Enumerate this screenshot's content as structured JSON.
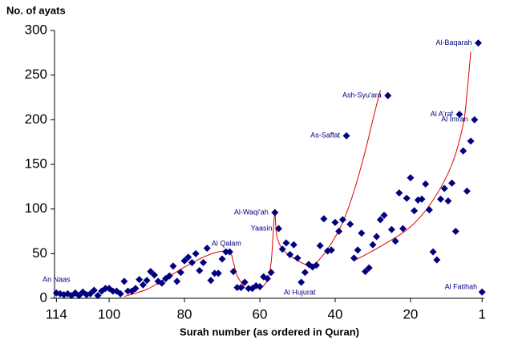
{
  "chart_data": {
    "type": "scatter",
    "y_label": "No. of ayats",
    "x_label": "Surah number  (as ordered in Quran)",
    "xlim": [
      114.5,
      0.4
    ],
    "ylim": [
      0,
      300
    ],
    "xticks": [
      114,
      100,
      80,
      60,
      40,
      20,
      1
    ],
    "yticks": [
      0,
      50,
      100,
      150,
      200,
      250,
      300
    ],
    "grid": false,
    "point_color": "#000080",
    "curve_color": "#e00000",
    "x": [
      1,
      2,
      3,
      4,
      5,
      6,
      7,
      8,
      9,
      10,
      11,
      12,
      13,
      14,
      15,
      16,
      17,
      18,
      19,
      20,
      21,
      22,
      23,
      24,
      25,
      26,
      27,
      28,
      29,
      30,
      31,
      32,
      33,
      34,
      35,
      36,
      37,
      38,
      39,
      40,
      41,
      42,
      43,
      44,
      45,
      46,
      47,
      48,
      49,
      50,
      51,
      52,
      53,
      54,
      55,
      56,
      57,
      58,
      59,
      60,
      61,
      62,
      63,
      64,
      65,
      66,
      67,
      68,
      69,
      70,
      71,
      72,
      73,
      74,
      75,
      76,
      77,
      78,
      79,
      80,
      81,
      82,
      83,
      84,
      85,
      86,
      87,
      88,
      89,
      90,
      91,
      92,
      93,
      94,
      95,
      96,
      97,
      98,
      99,
      100,
      101,
      102,
      103,
      104,
      105,
      106,
      107,
      108,
      109,
      110,
      111,
      112,
      113,
      114
    ],
    "values": [
      7,
      286,
      200,
      176,
      120,
      165,
      206,
      75,
      129,
      109,
      123,
      111,
      43,
      52,
      99,
      128,
      111,
      110,
      98,
      135,
      112,
      78,
      118,
      64,
      77,
      227,
      93,
      88,
      69,
      60,
      34,
      30,
      73,
      54,
      45,
      83,
      182,
      88,
      75,
      85,
      54,
      53,
      89,
      59,
      37,
      35,
      38,
      29,
      18,
      45,
      60,
      49,
      62,
      55,
      78,
      96,
      29,
      22,
      24,
      13,
      14,
      11,
      11,
      18,
      12,
      12,
      30,
      52,
      52,
      44,
      28,
      28,
      20,
      56,
      40,
      31,
      50,
      40,
      46,
      42,
      29,
      19,
      36,
      25,
      22,
      17,
      19,
      26,
      30,
      20,
      15,
      21,
      11,
      8,
      8,
      19,
      5,
      8,
      8,
      11,
      11,
      8,
      3,
      9,
      5,
      4,
      7,
      3,
      6,
      3,
      5,
      4,
      5,
      6
    ],
    "point_labels": [
      "Al Fatihah",
      "Al-Baqarah",
      "Al Imran",
      null,
      null,
      null,
      "Al A'raf",
      null,
      null,
      null,
      null,
      null,
      null,
      null,
      null,
      null,
      null,
      null,
      null,
      null,
      null,
      null,
      null,
      null,
      null,
      "Ash-Syu'ara",
      null,
      null,
      null,
      null,
      null,
      null,
      null,
      null,
      null,
      null,
      "As-Saffat",
      null,
      null,
      null,
      null,
      null,
      null,
      null,
      null,
      null,
      null,
      null,
      "Al Hujurat",
      null,
      null,
      null,
      null,
      null,
      "Yaasin",
      "Al-Waqi'ah",
      null,
      null,
      null,
      null,
      null,
      null,
      null,
      null,
      null,
      null,
      null,
      "Al Qalam",
      null,
      null,
      null,
      null,
      null,
      null,
      null,
      null,
      null,
      null,
      null,
      null,
      null,
      null,
      null,
      null,
      null,
      null,
      null,
      null,
      null,
      null,
      null,
      null,
      null,
      null,
      null,
      null,
      null,
      null,
      null,
      null,
      null,
      null,
      null,
      null,
      null,
      null,
      null,
      null,
      null,
      null,
      null,
      null,
      null,
      "An Naas"
    ],
    "curves": [
      {
        "x": [
          96,
          90,
          85,
          80,
          75,
          71,
          68,
          67,
          66,
          64
        ],
        "values": [
          2,
          10,
          22,
          35,
          46,
          52,
          52,
          40,
          25,
          12
        ]
      },
      {
        "x": [
          60,
          58,
          57,
          56.5,
          56,
          55.5,
          54,
          51,
          48,
          46
        ],
        "values": [
          10,
          20,
          40,
          70,
          95,
          70,
          55,
          45,
          38,
          35
        ]
      },
      {
        "x": [
          46,
          42,
          38,
          35,
          32,
          30,
          28
        ],
        "values": [
          35,
          55,
          85,
          120,
          165,
          200,
          233
        ]
      },
      {
        "x": [
          35,
          28,
          20,
          14,
          9,
          6,
          5,
          4
        ],
        "values": [
          42,
          58,
          80,
          110,
          150,
          195,
          230,
          276
        ]
      }
    ]
  }
}
